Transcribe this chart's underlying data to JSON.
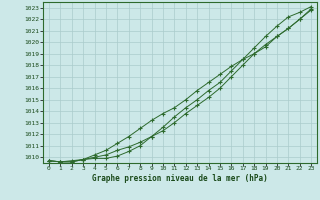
{
  "title": "Graphe pression niveau de la mer (hPa)",
  "bg_color": "#cce8e8",
  "grid_color": "#aacccc",
  "line_color": "#2d6a2d",
  "marker_color": "#2d6a2d",
  "xlim": [
    -0.5,
    23.5
  ],
  "ylim": [
    1009.5,
    1023.5
  ],
  "xticks": [
    0,
    1,
    2,
    3,
    4,
    5,
    6,
    7,
    8,
    9,
    10,
    11,
    12,
    13,
    14,
    15,
    16,
    17,
    18,
    19,
    20,
    21,
    22,
    23
  ],
  "yticks": [
    1010,
    1011,
    1012,
    1013,
    1014,
    1015,
    1016,
    1017,
    1018,
    1019,
    1020,
    1021,
    1022,
    1023
  ],
  "series1": [
    1009.7,
    1009.6,
    1009.6,
    1009.8,
    1009.9,
    1009.9,
    1010.1,
    1010.5,
    1011.0,
    1011.8,
    1012.6,
    1013.5,
    1014.3,
    1015.0,
    1015.8,
    1016.5,
    1017.5,
    1018.5,
    1019.5,
    1020.5,
    1021.4,
    1022.2,
    1022.6,
    1023.1
  ],
  "series2": [
    1009.7,
    1009.6,
    1009.6,
    1009.8,
    1010.2,
    1010.6,
    1011.2,
    1011.8,
    1012.5,
    1013.2,
    1013.8,
    1014.3,
    1015.0,
    1015.8,
    1016.5,
    1017.2,
    1017.9,
    1018.5,
    1019.0,
    1019.6,
    1020.5,
    1021.2,
    1022.0,
    1022.8
  ],
  "series3": [
    1009.7,
    1009.6,
    1009.7,
    1009.8,
    1010.0,
    1010.2,
    1010.6,
    1010.9,
    1011.3,
    1011.8,
    1012.3,
    1013.0,
    1013.8,
    1014.5,
    1015.2,
    1016.0,
    1017.0,
    1018.0,
    1019.0,
    1019.8,
    1020.5,
    1021.2,
    1022.0,
    1022.9
  ]
}
